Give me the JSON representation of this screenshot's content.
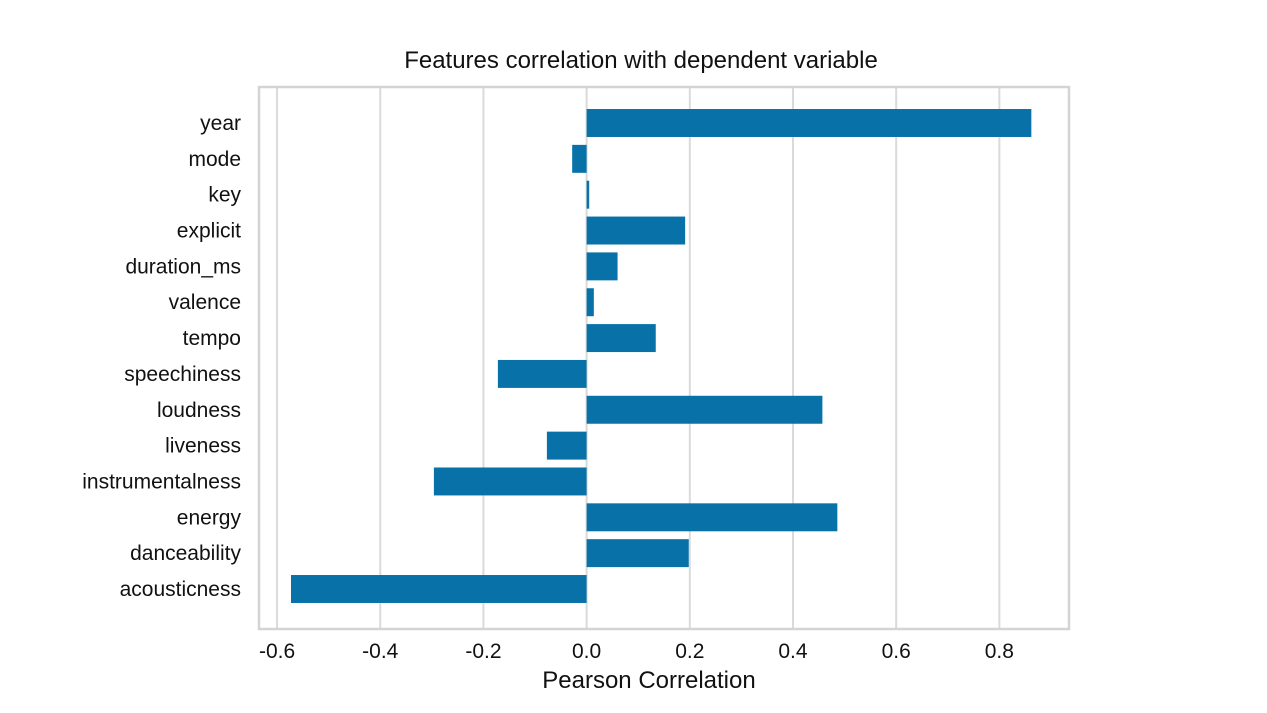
{
  "chart_data": {
    "type": "bar",
    "orientation": "horizontal",
    "title": "Features correlation with dependent variable",
    "xlabel": "Pearson Correlation",
    "ylabel": "",
    "xlim": [
      -0.635,
      0.935
    ],
    "xticks": [
      -0.6,
      -0.4,
      -0.2,
      0.0,
      0.2,
      0.4,
      0.6,
      0.8
    ],
    "xtick_labels": [
      "-0.6",
      "-0.4",
      "-0.2",
      "0.0",
      "0.2",
      "0.4",
      "0.6",
      "0.8"
    ],
    "grid": "vertical",
    "bar_color": "#0872a8",
    "categories": [
      "year",
      "mode",
      "key",
      "explicit",
      "duration_ms",
      "valence",
      "tempo",
      "speechiness",
      "loudness",
      "liveness",
      "instrumentalness",
      "energy",
      "danceability",
      "acousticness"
    ],
    "values": [
      0.862,
      -0.028,
      0.005,
      0.191,
      0.06,
      0.014,
      0.134,
      -0.172,
      0.457,
      -0.077,
      -0.296,
      0.486,
      0.198,
      -0.573
    ]
  }
}
